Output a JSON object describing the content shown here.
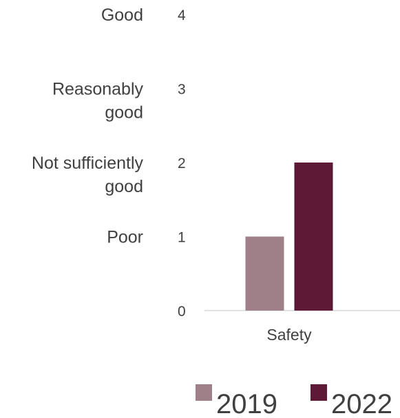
{
  "chart_data": {
    "type": "bar",
    "categories": [
      "Safety"
    ],
    "series": [
      {
        "name": "2019",
        "values": [
          1
        ],
        "color": "#a08088"
      },
      {
        "name": "2022",
        "values": [
          2
        ],
        "color": "#5c1a37"
      }
    ],
    "ylim": [
      0,
      4
    ],
    "yticks": [
      {
        "value": 0,
        "tick": "0",
        "rating": []
      },
      {
        "value": 1,
        "tick": "1",
        "rating": [
          "Poor"
        ]
      },
      {
        "value": 2,
        "tick": "2",
        "rating": [
          "Not sufficiently",
          "good"
        ]
      },
      {
        "value": 3,
        "tick": "3",
        "rating": [
          "Reasonably",
          "good"
        ]
      },
      {
        "value": 4,
        "tick": "4",
        "rating": [
          "Good"
        ]
      }
    ],
    "grid": false,
    "legend_position": "bottom-right",
    "axis_color": "#d9d9d9",
    "text_color": "#404040"
  }
}
